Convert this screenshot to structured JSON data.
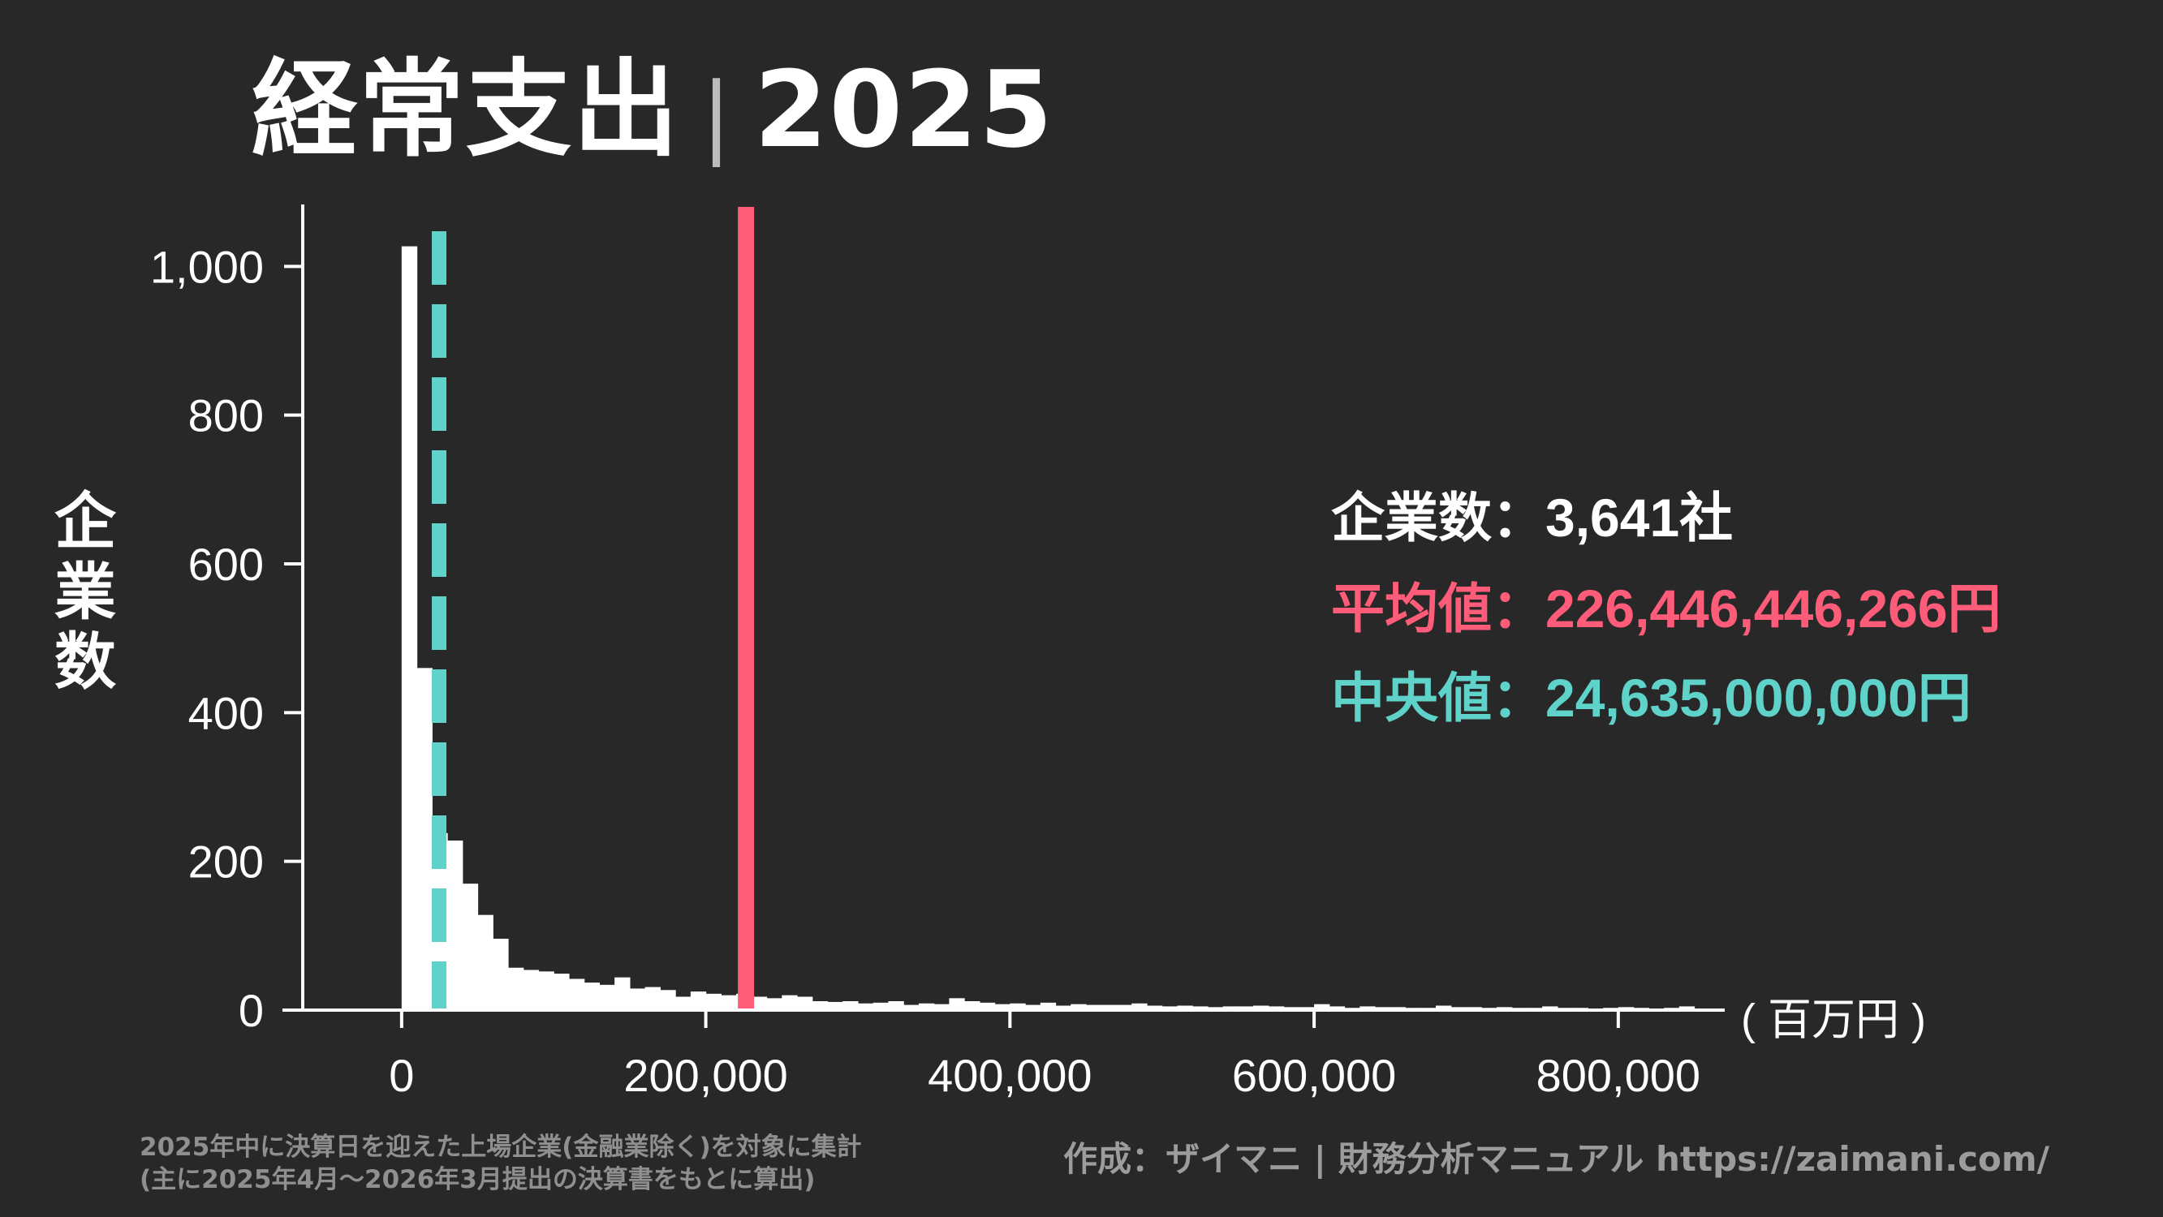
{
  "title": {
    "main": "経常支出",
    "separator": "|",
    "year": "2025"
  },
  "y_axis_label": [
    "企",
    "業",
    "数"
  ],
  "unit_label": "( 百万円 )",
  "stats": {
    "count_label": "企業数：",
    "count_value": "3,641社",
    "mean_label": "平均値：",
    "mean_value": "226,446,446,266円",
    "median_label": "中央値：",
    "median_value": "24,635,000,000円"
  },
  "footnotes": {
    "line1": "2025年中に決算日を迎えた上場企業(金融業除く)を対象に集計",
    "line2": "(主に2025年4月〜2026年3月提出の決算書をもとに算出)"
  },
  "credit": "作成：ザイマニ | 財務分析マニュアル https://zaimani.com/",
  "colors": {
    "background": "#282828",
    "bars": "#ffffff",
    "mean": "#ff5c7a",
    "median": "#5fd3c9",
    "footnote": "#8f8f8f"
  },
  "chart_data": {
    "type": "bar",
    "subtype": "histogram",
    "x_unit": "百万円",
    "bin_width": 10000,
    "bins_start": 0,
    "counts": [
      1027,
      460,
      238,
      228,
      170,
      128,
      96,
      57,
      54,
      52,
      49,
      42,
      37,
      34,
      44,
      29,
      31,
      27,
      18,
      25,
      22,
      20,
      22,
      18,
      16,
      20,
      18,
      12,
      11,
      12,
      9,
      10,
      12,
      7,
      9,
      8,
      16,
      12,
      10,
      8,
      9,
      7,
      10,
      6,
      8,
      7,
      7,
      7,
      9,
      6,
      5,
      6,
      5,
      4,
      5,
      5,
      6,
      5,
      4,
      4,
      8,
      5,
      3,
      5,
      4,
      4,
      3,
      3,
      6,
      4,
      4,
      3,
      4,
      3,
      3,
      5,
      3,
      3,
      2,
      3,
      4,
      3,
      2,
      3,
      5
    ],
    "xlim": [
      -25000,
      870000
    ],
    "ylim": [
      0,
      1080
    ],
    "x_ticks": [
      0,
      200000,
      400000,
      600000,
      800000
    ],
    "x_tick_labels": [
      "0",
      "200,000",
      "400,000",
      "600,000",
      "800,000"
    ],
    "y_ticks": [
      0,
      200,
      400,
      600,
      800,
      1000
    ],
    "y_tick_labels": [
      "0",
      "200",
      "400",
      "600",
      "800",
      "1,000"
    ],
    "mean_x": 226446,
    "median_x": 24635,
    "grid": false
  }
}
